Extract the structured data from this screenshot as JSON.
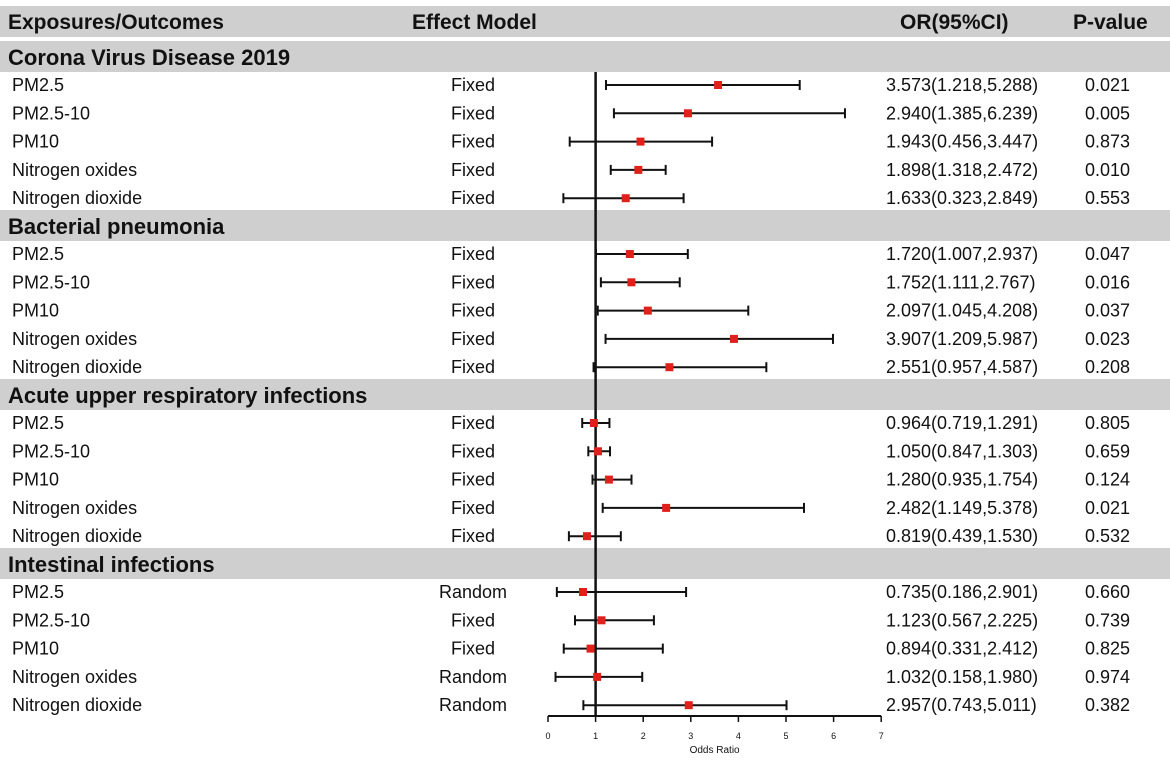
{
  "chart_data": {
    "type": "forest",
    "x_label": "Odds Ratio",
    "x_ticks": [
      0,
      1,
      2,
      3,
      4,
      5,
      6,
      7
    ],
    "x_range": [
      0,
      7
    ],
    "reference_line": 1,
    "columns": {
      "exposure": "Exposures/Outcomes",
      "model": "Effect Model",
      "or": "OR(95%CI)",
      "p": "P-value"
    },
    "groups": [
      {
        "name": "Corona Virus Disease 2019",
        "rows": [
          {
            "exposure": "PM2.5",
            "model": "Fixed",
            "or": 3.573,
            "lo": 1.218,
            "hi": 5.288,
            "or_text": "3.573(1.218,5.288)",
            "p": "0.021"
          },
          {
            "exposure": "PM2.5-10",
            "model": "Fixed",
            "or": 2.94,
            "lo": 1.385,
            "hi": 6.239,
            "or_text": "2.940(1.385,6.239)",
            "p": "0.005"
          },
          {
            "exposure": "PM10",
            "model": "Fixed",
            "or": 1.943,
            "lo": 0.456,
            "hi": 3.447,
            "or_text": "1.943(0.456,3.447)",
            "p": "0.873"
          },
          {
            "exposure": "Nitrogen oxides",
            "model": "Fixed",
            "or": 1.898,
            "lo": 1.318,
            "hi": 2.472,
            "or_text": "1.898(1.318,2.472)",
            "p": "0.010"
          },
          {
            "exposure": "Nitrogen dioxide",
            "model": "Fixed",
            "or": 1.633,
            "lo": 0.323,
            "hi": 2.849,
            "or_text": "1.633(0.323,2.849)",
            "p": "0.553"
          }
        ]
      },
      {
        "name": "Bacterial pneumonia",
        "rows": [
          {
            "exposure": "PM2.5",
            "model": "Fixed",
            "or": 1.72,
            "lo": 1.007,
            "hi": 2.937,
            "or_text": "1.720(1.007,2.937)",
            "p": "0.047"
          },
          {
            "exposure": "PM2.5-10",
            "model": "Fixed",
            "or": 1.752,
            "lo": 1.111,
            "hi": 2.767,
            "or_text": "1.752(1.111,2.767)",
            "p": "0.016"
          },
          {
            "exposure": "PM10",
            "model": "Fixed",
            "or": 2.097,
            "lo": 1.045,
            "hi": 4.208,
            "or_text": "2.097(1.045,4.208)",
            "p": "0.037"
          },
          {
            "exposure": "Nitrogen oxides",
            "model": "Fixed",
            "or": 3.907,
            "lo": 1.209,
            "hi": 5.987,
            "or_text": "3.907(1.209,5.987)",
            "p": "0.023"
          },
          {
            "exposure": "Nitrogen dioxide",
            "model": "Fixed",
            "or": 2.551,
            "lo": 0.957,
            "hi": 4.587,
            "or_text": "2.551(0.957,4.587)",
            "p": "0.208"
          }
        ]
      },
      {
        "name": "Acute upper respiratory infections",
        "rows": [
          {
            "exposure": "PM2.5",
            "model": "Fixed",
            "or": 0.964,
            "lo": 0.719,
            "hi": 1.291,
            "or_text": "0.964(0.719,1.291)",
            "p": "0.805"
          },
          {
            "exposure": "PM2.5-10",
            "model": "Fixed",
            "or": 1.05,
            "lo": 0.847,
            "hi": 1.303,
            "or_text": "1.050(0.847,1.303)",
            "p": "0.659"
          },
          {
            "exposure": "PM10",
            "model": "Fixed",
            "or": 1.28,
            "lo": 0.935,
            "hi": 1.754,
            "or_text": "1.280(0.935,1.754)",
            "p": "0.124"
          },
          {
            "exposure": "Nitrogen oxides",
            "model": "Fixed",
            "or": 2.482,
            "lo": 1.149,
            "hi": 5.378,
            "or_text": "2.482(1.149,5.378)",
            "p": "0.021"
          },
          {
            "exposure": "Nitrogen dioxide",
            "model": "Fixed",
            "or": 0.819,
            "lo": 0.439,
            "hi": 1.53,
            "or_text": "0.819(0.439,1.530)",
            "p": "0.532"
          }
        ]
      },
      {
        "name": "Intestinal infections",
        "rows": [
          {
            "exposure": "PM2.5",
            "model": "Random",
            "or": 0.735,
            "lo": 0.186,
            "hi": 2.901,
            "or_text": "0.735(0.186,2.901)",
            "p": "0.660"
          },
          {
            "exposure": "PM2.5-10",
            "model": "Fixed",
            "or": 1.123,
            "lo": 0.567,
            "hi": 2.225,
            "or_text": "1.123(0.567,2.225)",
            "p": "0.739"
          },
          {
            "exposure": "PM10",
            "model": "Fixed",
            "or": 0.894,
            "lo": 0.331,
            "hi": 2.412,
            "or_text": "0.894(0.331,2.412)",
            "p": "0.825"
          },
          {
            "exposure": "Nitrogen oxides",
            "model": "Random",
            "or": 1.032,
            "lo": 0.158,
            "hi": 1.98,
            "or_text": "1.032(0.158,1.980)",
            "p": "0.974"
          },
          {
            "exposure": "Nitrogen dioxide",
            "model": "Random",
            "or": 2.957,
            "lo": 0.743,
            "hi": 5.011,
            "or_text": "2.957(0.743,5.011)",
            "p": "0.382"
          }
        ]
      }
    ],
    "colors": {
      "band": "#cfcfcf",
      "point": "#e0201b",
      "line": "#111111"
    }
  }
}
